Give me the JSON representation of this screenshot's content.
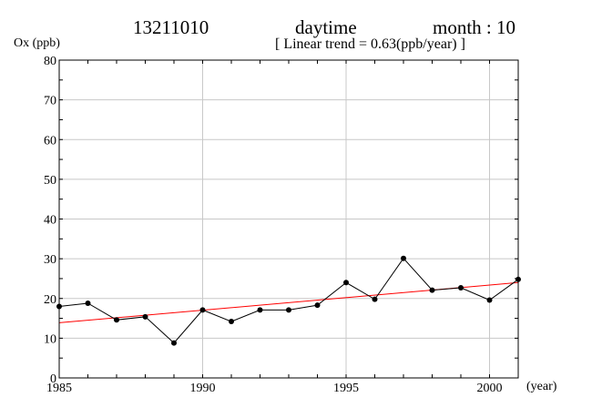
{
  "header": {
    "station": "13211010",
    "period": "daytime",
    "month": "month : 10",
    "trend": "[ Linear trend = 0.63(ppb/year) ]"
  },
  "chart_data": {
    "type": "line",
    "ylabel": "Ox (ppb)",
    "xlabel": "(year)",
    "xlim": [
      1985,
      2001
    ],
    "ylim": [
      0,
      80
    ],
    "x_ticks": [
      1985,
      1990,
      1995,
      2000
    ],
    "y_ticks": [
      0,
      10,
      20,
      30,
      40,
      50,
      60,
      70,
      80
    ],
    "grid": true,
    "series": [
      {
        "x": [
          1985,
          1986,
          1987,
          1988,
          1989,
          1990,
          1991,
          1992,
          1993,
          1994,
          1995,
          1996,
          1997,
          1998,
          1999,
          2000,
          2001
        ],
        "values": [
          18,
          18.8,
          14.6,
          15.4,
          8.8,
          17.1,
          14.2,
          17.1,
          17.1,
          18.3,
          24,
          19.8,
          30.1,
          22.1,
          22.7,
          19.6,
          24.8
        ],
        "color": "#000000"
      }
    ],
    "trend_line": {
      "x": [
        1985,
        2001
      ],
      "values": [
        13.9,
        24.0
      ],
      "color": "#ff0000"
    }
  }
}
